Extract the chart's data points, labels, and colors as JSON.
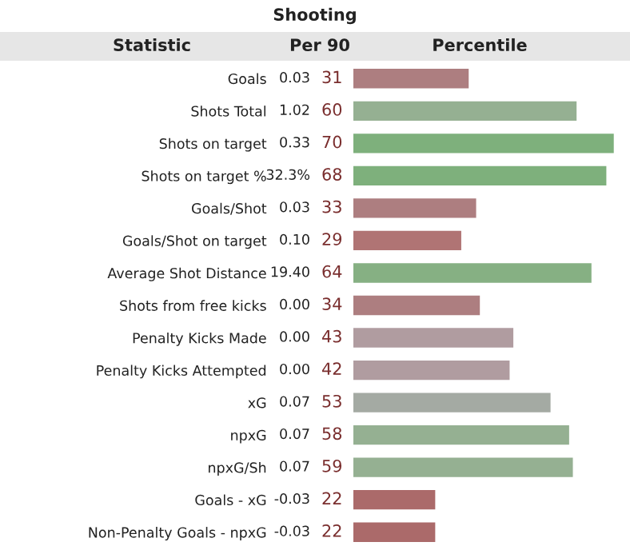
{
  "chart_data": {
    "type": "bar",
    "orientation": "horizontal",
    "title": "Shooting",
    "categories": [
      "Goals",
      "Shots Total",
      "Shots on target",
      "Shots on target %",
      "Goals/Shot",
      "Goals/Shot on target",
      "Average Shot Distance",
      "Shots from free kicks",
      "Penalty Kicks Made",
      "Penalty Kicks Attempted",
      "xG",
      "npxG",
      "npxG/Sh",
      "Goals - xG",
      "Non-Penalty Goals - npxG"
    ],
    "values": [
      31,
      60,
      70,
      68,
      33,
      29,
      64,
      34,
      43,
      42,
      53,
      58,
      59,
      22,
      22
    ],
    "colors": [
      "#ad7e80",
      "#95b092",
      "#7eb07c",
      "#7eb07c",
      "#ad7e80",
      "#b07474",
      "#86b083",
      "#ad7e80",
      "#b09ca0",
      "#b09ca0",
      "#a4aaa3",
      "#95b092",
      "#95b092",
      "#ab6a6a",
      "#ab6a6a"
    ],
    "data_labels": true,
    "tick_labels": "y",
    "grid": false,
    "annotations": [
      "Statistic",
      "Per 90",
      "Percentile",
      "0.03",
      "1.02",
      "0.33",
      "32.3%",
      "0.03",
      "0.10",
      "19.40",
      "0.00",
      "0.00",
      "0.00",
      "0.07",
      "0.07",
      "0.07",
      "-0.03",
      "-0.03"
    ]
  }
}
